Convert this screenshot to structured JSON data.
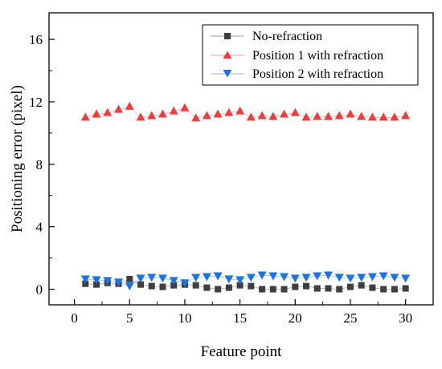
{
  "chart_data": {
    "type": "scatter",
    "xlabel": "Feature point",
    "ylabel": "Positioning error (pixel)",
    "xlim": [
      -2.3,
      32.5
    ],
    "ylim": [
      -1.0,
      17.7
    ],
    "x_ticks": [
      0,
      5,
      10,
      15,
      20,
      25,
      30
    ],
    "y_ticks": [
      0,
      4,
      8,
      12,
      16
    ],
    "grid": false,
    "legend_position": "top-right",
    "x": [
      1,
      2,
      3,
      4,
      5,
      6,
      7,
      8,
      9,
      10,
      11,
      12,
      13,
      14,
      15,
      16,
      17,
      18,
      19,
      20,
      21,
      22,
      23,
      24,
      25,
      26,
      27,
      28,
      29,
      30
    ],
    "series": [
      {
        "name": "No-refraction",
        "marker": "square",
        "color": "#3f3f3f",
        "values": [
          0.35,
          0.3,
          0.4,
          0.35,
          0.65,
          0.3,
          0.2,
          0.15,
          0.25,
          0.3,
          0.25,
          0.1,
          0.0,
          0.1,
          0.25,
          0.2,
          0.0,
          0.0,
          0.0,
          0.15,
          0.2,
          0.05,
          0.05,
          0.0,
          0.15,
          0.25,
          0.1,
          0.0,
          0.0,
          0.05
        ]
      },
      {
        "name": "Position 1 with refraction",
        "marker": "triangle-up",
        "color": "#f23c3c",
        "values": [
          11.0,
          11.2,
          11.3,
          11.5,
          11.7,
          11.0,
          11.1,
          11.2,
          11.4,
          11.6,
          10.95,
          11.1,
          11.2,
          11.3,
          11.4,
          11.0,
          11.1,
          11.05,
          11.2,
          11.3,
          11.0,
          11.05,
          11.05,
          11.1,
          11.2,
          11.05,
          11.0,
          11.0,
          11.0,
          11.1
        ]
      },
      {
        "name": "Position 2 with refraction",
        "marker": "triangle-down",
        "color": "#1b74e6",
        "values": [
          0.65,
          0.6,
          0.55,
          0.45,
          0.2,
          0.7,
          0.75,
          0.7,
          0.55,
          0.4,
          0.75,
          0.8,
          0.85,
          0.65,
          0.6,
          0.75,
          0.9,
          0.85,
          0.8,
          0.7,
          0.75,
          0.85,
          0.9,
          0.75,
          0.7,
          0.75,
          0.8,
          0.85,
          0.75,
          0.7
        ]
      }
    ]
  }
}
